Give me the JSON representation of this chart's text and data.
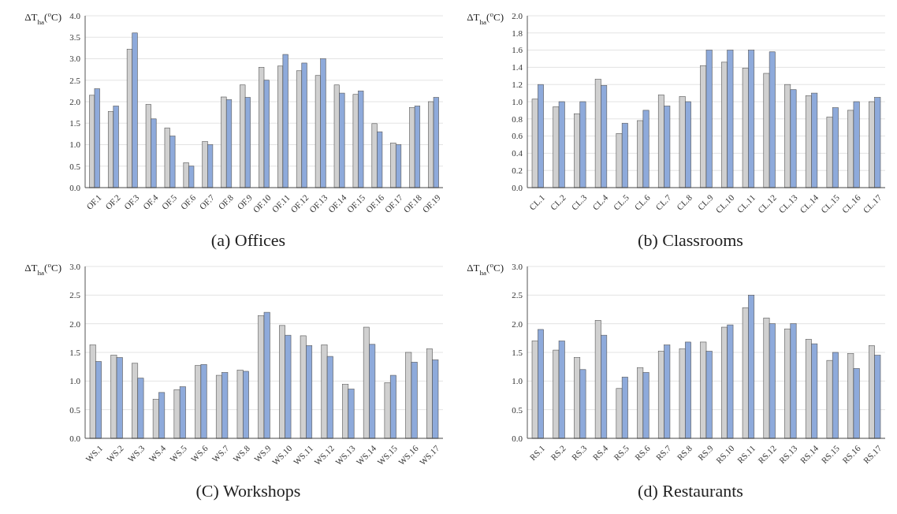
{
  "chart_data": [
    {
      "type": "bar",
      "title": "(a) Offices",
      "ylabel": "ΔT$_{ha}$($^{o}$C)",
      "categories": [
        "OF.1",
        "OF.2",
        "OF.3",
        "OF.4",
        "OF.5",
        "OF.6",
        "OF.7",
        "OF.8",
        "OF.9",
        "OF.10",
        "OF.11",
        "OF.12",
        "OF.13",
        "OF.14",
        "OF.15",
        "OF.16",
        "OF.17",
        "OF.18",
        "OF.19"
      ],
      "series": [
        {
          "type": "bar",
          "color": "#d0d0d0",
          "values": [
            2.15,
            1.77,
            3.22,
            1.94,
            1.39,
            0.58,
            1.07,
            2.11,
            2.39,
            2.8,
            2.83,
            2.72,
            2.61,
            2.39,
            2.17,
            1.49,
            1.04,
            1.86,
            2.0
          ]
        },
        {
          "type": "bar",
          "color": "#8eaadb",
          "values": [
            2.3,
            1.9,
            3.6,
            1.6,
            1.2,
            0.5,
            1.0,
            2.05,
            2.1,
            2.5,
            3.1,
            2.9,
            3.0,
            2.2,
            2.25,
            1.3,
            1.0,
            1.9,
            2.1
          ]
        }
      ],
      "ylim": [
        0,
        4
      ],
      "yticks": [
        {
          "value": 0,
          "label": "0.0"
        },
        {
          "value": 0.5,
          "label": "0.5"
        },
        {
          "value": 1,
          "label": "1.0"
        },
        {
          "value": 1.5,
          "label": "1.5"
        },
        {
          "value": 2,
          "label": "2.0"
        },
        {
          "value": 2.5,
          "label": "2.5"
        },
        {
          "value": 3,
          "label": "3.0"
        },
        {
          "value": 3.5,
          "label": "3.5"
        },
        {
          "value": 4,
          "label": "4.0"
        }
      ],
      "grid": "y"
    },
    {
      "type": "bar",
      "title": "(b) Classrooms",
      "ylabel": "ΔT$_{ha}$($^{o}$C)",
      "categories": [
        "CL.1",
        "CL.2",
        "CL.3",
        "CL.4",
        "CL.5",
        "CL.6",
        "CL.7",
        "CL.8",
        "CL.9",
        "CL.10",
        "CL.11",
        "CL.12",
        "CL.13",
        "CL.14",
        "CL.15",
        "CL.16",
        "CL.17"
      ],
      "series": [
        {
          "type": "bar",
          "color": "#d0d0d0",
          "values": [
            1.03,
            0.94,
            0.86,
            1.26,
            0.63,
            0.78,
            1.08,
            1.06,
            1.42,
            1.46,
            1.39,
            1.33,
            1.2,
            1.07,
            0.82,
            0.9,
            1.0
          ]
        },
        {
          "type": "bar",
          "color": "#8eaadb",
          "values": [
            1.2,
            1.0,
            1.0,
            1.19,
            0.75,
            0.9,
            0.95,
            1.0,
            1.6,
            1.6,
            1.6,
            1.58,
            1.14,
            1.1,
            0.93,
            1.0,
            1.05
          ]
        }
      ],
      "ylim": [
        0,
        2
      ],
      "yticks": [
        {
          "value": 0,
          "label": "0.0"
        },
        {
          "value": 0.2,
          "label": "0.2"
        },
        {
          "value": 0.4,
          "label": "0.4"
        },
        {
          "value": 0.6,
          "label": "0.6"
        },
        {
          "value": 0.8,
          "label": "0.8"
        },
        {
          "value": 1,
          "label": "1.0"
        },
        {
          "value": 1.2,
          "label": "1.2"
        },
        {
          "value": 1.4,
          "label": "1.4"
        },
        {
          "value": 1.6,
          "label": "1.6"
        },
        {
          "value": 1.8,
          "label": "1.8"
        },
        {
          "value": 2,
          "label": "2.0"
        }
      ],
      "grid": "y"
    },
    {
      "type": "bar",
      "title": "(C) Workshops",
      "ylabel": "ΔT$_{ha}$($^{o}$C)",
      "categories": [
        "WS.1",
        "WS.2",
        "WS.3",
        "WS.4",
        "WS.5",
        "WS.6",
        "WS.7",
        "WS.8",
        "WS.9",
        "WS.10",
        "WS.11",
        "WS.12",
        "WS.13",
        "WS.14",
        "WS.15",
        "WS.16",
        "WS.17"
      ],
      "series": [
        {
          "type": "bar",
          "color": "#d0d0d0",
          "values": [
            1.63,
            1.45,
            1.31,
            0.68,
            0.85,
            1.27,
            1.1,
            1.19,
            2.14,
            1.97,
            1.79,
            1.63,
            0.94,
            1.94,
            0.97,
            1.5,
            1.56
          ]
        },
        {
          "type": "bar",
          "color": "#8eaadb",
          "values": [
            1.34,
            1.41,
            1.05,
            0.8,
            0.9,
            1.29,
            1.15,
            1.17,
            2.2,
            1.8,
            1.62,
            1.43,
            0.86,
            1.64,
            1.1,
            1.33,
            1.37
          ]
        }
      ],
      "ylim": [
        0,
        3
      ],
      "yticks": [
        {
          "value": 0,
          "label": "0.0"
        },
        {
          "value": 0.5,
          "label": "0.5"
        },
        {
          "value": 1,
          "label": "1.0"
        },
        {
          "value": 1.5,
          "label": "1.5"
        },
        {
          "value": 2,
          "label": "2.0"
        },
        {
          "value": 2.5,
          "label": "2.5"
        },
        {
          "value": 3,
          "label": "3.0"
        }
      ],
      "grid": "y"
    },
    {
      "type": "bar",
      "title": "(d) Restaurants",
      "ylabel": "ΔT$_{ha}$($^{o}$C)",
      "categories": [
        "RS.1",
        "RS.2",
        "RS.3",
        "RS.4",
        "RS.5",
        "RS.6",
        "RS.7",
        "RS.8",
        "RS.9",
        "RS.10",
        "RS.11",
        "RS.12",
        "RS.13",
        "RS.14",
        "RS.15",
        "RS.16",
        "RS.17"
      ],
      "series": [
        {
          "type": "bar",
          "color": "#d0d0d0",
          "values": [
            1.7,
            1.54,
            1.41,
            2.06,
            0.87,
            1.23,
            1.52,
            1.56,
            1.68,
            1.94,
            2.28,
            2.1,
            1.91,
            1.73,
            1.36,
            1.48,
            1.62
          ]
        },
        {
          "type": "bar",
          "color": "#8eaadb",
          "values": [
            1.9,
            1.7,
            1.2,
            1.8,
            1.07,
            1.15,
            1.63,
            1.68,
            1.52,
            1.98,
            2.5,
            2.0,
            2.0,
            1.65,
            1.5,
            1.22,
            1.45
          ]
        }
      ],
      "ylim": [
        0,
        3
      ],
      "yticks": [
        {
          "value": 0,
          "label": "0.0"
        },
        {
          "value": 0.5,
          "label": "0.5"
        },
        {
          "value": 1,
          "label": "1.0"
        },
        {
          "value": 1.5,
          "label": "1.5"
        },
        {
          "value": 2,
          "label": "2.0"
        },
        {
          "value": 2.5,
          "label": "2.5"
        },
        {
          "value": 3,
          "label": "3.0"
        }
      ],
      "grid": "y"
    }
  ]
}
